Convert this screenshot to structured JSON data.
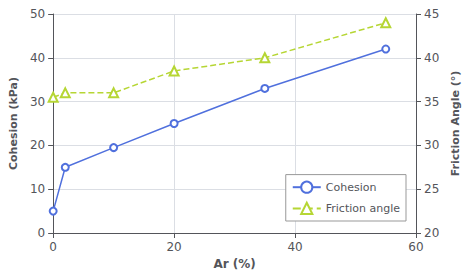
{
  "chart_data": {
    "type": "line",
    "xlabel": "Ar (%)",
    "ylabel": "Cohesion (kPa)",
    "y2label": "Friction Angle (°)",
    "x": [
      0,
      2,
      10,
      20,
      35,
      55
    ],
    "series": [
      {
        "name": "Cohesion",
        "values": [
          5,
          15,
          19.5,
          25,
          33,
          42
        ],
        "marker": "circle",
        "line_style": "solid"
      },
      {
        "name": "Friction angle",
        "values": [
          35.5,
          36,
          36,
          38.5,
          40,
          44
        ],
        "axis": "y2",
        "marker": "triangle",
        "line_style": "dashed"
      }
    ],
    "xlim": [
      0,
      60
    ],
    "xticks": [
      0,
      20,
      40,
      60
    ],
    "ylim": [
      0,
      50
    ],
    "yticks": [
      0,
      10,
      20,
      30,
      40,
      50
    ],
    "y2lim": [
      20,
      45
    ],
    "y2ticks": [
      20,
      25,
      30,
      35,
      40,
      45
    ],
    "grid": true,
    "legend": "lower right"
  }
}
